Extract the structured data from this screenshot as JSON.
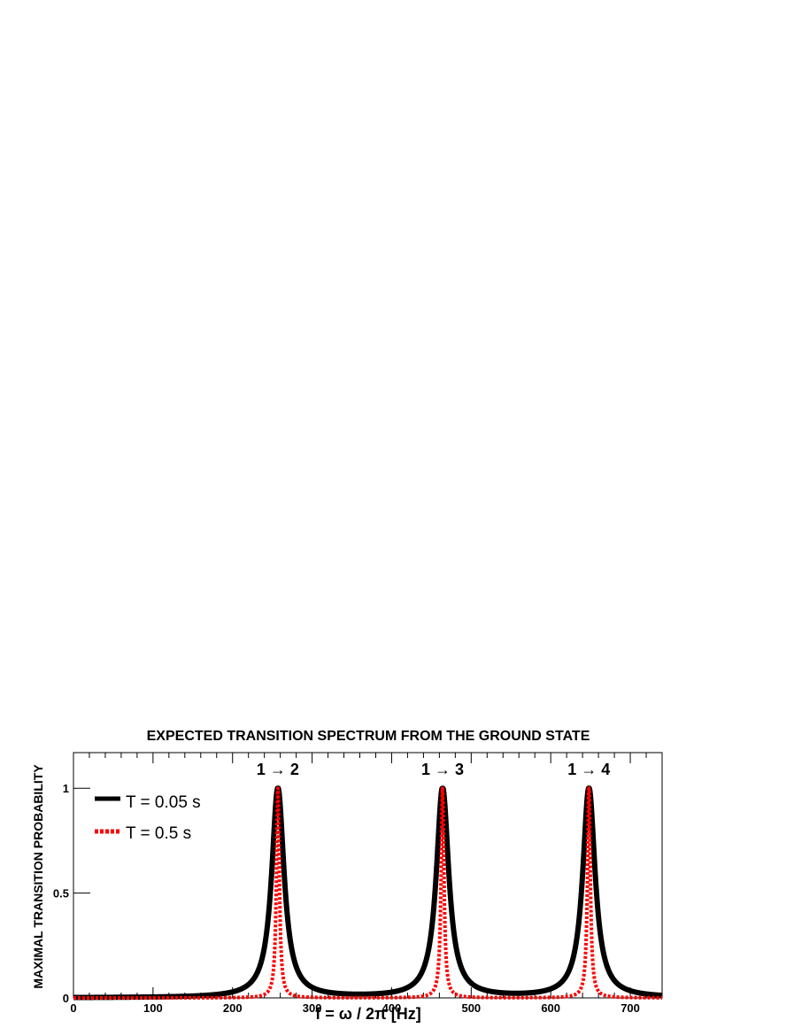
{
  "chart_data": {
    "type": "line",
    "title": "EXPECTED TRANSITION SPECTRUM FROM THE GROUND STATE",
    "xlabel": "f = ω / 2π [Hz]",
    "ylabel": "MAXIMAL TRANSITION PROBABILITY",
    "xlim": [
      0,
      740
    ],
    "ylim": [
      0,
      1.17
    ],
    "x_ticks": [
      0,
      100,
      200,
      300,
      400,
      500,
      600,
      700
    ],
    "x_tick_labels": [
      "0",
      "100",
      "200",
      "300",
      "400",
      "500",
      "600",
      "700"
    ],
    "y_ticks": [
      0,
      0.5,
      1
    ],
    "y_tick_labels": [
      "0",
      "0.5",
      "1"
    ],
    "grid": false,
    "legend_position": "top-left",
    "peaks": [
      {
        "x": 257,
        "label": "1 → 2"
      },
      {
        "x": 464,
        "label": "1 → 3"
      },
      {
        "x": 648,
        "label": "1 → 4"
      }
    ],
    "series": [
      {
        "name": "T = 0.05 s",
        "color": "#000000",
        "style": "solid",
        "peak_height": 1.0,
        "half_width_hz": 9.5
      },
      {
        "name": "T = 0.5 s",
        "color": "#ff0000",
        "style": "dotted",
        "peak_height": 1.0,
        "half_width_hz": 2.2
      }
    ]
  }
}
